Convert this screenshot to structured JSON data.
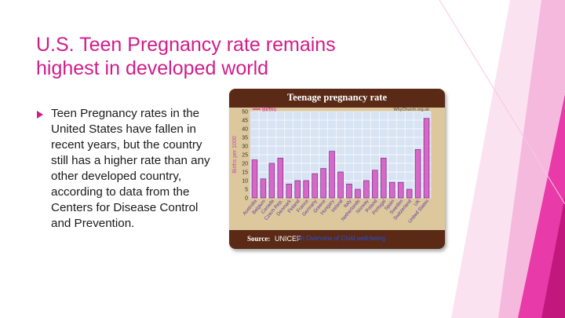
{
  "slide": {
    "title_line1": "U.S. Teen Pregnancy rate remains",
    "title_line2": "highest in developed world",
    "bullet": "Teen Pregnancy rates in the United States have fallen in recent years, but the country still has a higher rate than any other developed country, according to data from the Centers for Disease Control and Prevention."
  },
  "theme": {
    "accent": "#d01d8a",
    "deco_pink": "#e83aa8",
    "deco_light": "#f5b9de",
    "chart_frame": "#dcc89c",
    "chart_header": "#5a2a16",
    "plot_bg": "#d8e3f3",
    "bar_fill": "#d868c8",
    "bar_stroke": "#7a2a8a",
    "grid_color": "#ffffff"
  },
  "chart": {
    "header_title": "Teenage pregnancy rate",
    "watermark": "WhyChurch.org.uk",
    "source_label": "Source:",
    "source_value": "UNICEF",
    "source_link": "An Overview of Child well-being"
  },
  "chart_data": {
    "type": "bar",
    "categories": [
      "Australia",
      "Belgium",
      "Canada",
      "Czech Rep.",
      "Denmark",
      "Finland",
      "France",
      "Germany",
      "Greece",
      "Hungary",
      "Ireland",
      "Italy",
      "Netherlands",
      "Norway",
      "Poland",
      "Portugal",
      "Spain",
      "Sweden",
      "Switzerland",
      "UK",
      "United States"
    ],
    "series": [
      {
        "name": "Births",
        "values": [
          22,
          11,
          20,
          23,
          8,
          10,
          10,
          14,
          17,
          27,
          15,
          8,
          5,
          10,
          16,
          23,
          9,
          9,
          5,
          28,
          46
        ]
      }
    ],
    "ylabel": "Births per 1000",
    "ylim": [
      0,
      50
    ],
    "yticks": [
      0,
      5,
      10,
      15,
      20,
      25,
      30,
      35,
      40,
      45,
      50
    ],
    "grid": true,
    "legend": "top-left"
  }
}
